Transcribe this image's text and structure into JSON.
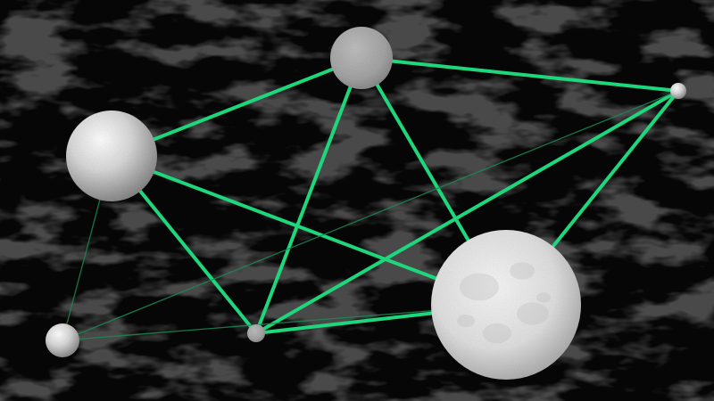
{
  "scene": {
    "background_color": "#060606",
    "texture_color": "#2a2a2a",
    "link_color": "#1ed67c",
    "faint_link_color": "#1a8a55",
    "sphere_light_color": "#ffffff",
    "sphere_mid_color": "#c9c9c9",
    "sphere_dark_color": "#6e6e6e"
  },
  "nodes": [
    {
      "id": "node-top"
    },
    {
      "id": "node-right-small"
    },
    {
      "id": "node-left-large"
    },
    {
      "id": "node-big"
    },
    {
      "id": "node-bottom-mid"
    },
    {
      "id": "node-bottom-left"
    }
  ],
  "links": [
    {
      "id": "link-left-large-to-top",
      "from": "node-left-large",
      "to": "node-top",
      "strength": "strong"
    },
    {
      "id": "link-top-to-right-small",
      "from": "node-top",
      "to": "node-right-small",
      "strength": "strong"
    },
    {
      "id": "link-top-to-big",
      "from": "node-top",
      "to": "node-big",
      "strength": "strong"
    },
    {
      "id": "link-top-to-bottom-mid",
      "from": "node-top",
      "to": "node-bottom-mid",
      "strength": "strong"
    },
    {
      "id": "link-left-large-to-big",
      "from": "node-left-large",
      "to": "node-big",
      "strength": "strong"
    },
    {
      "id": "link-left-large-to-bottom-mid",
      "from": "node-left-large",
      "to": "node-bottom-mid",
      "strength": "strong"
    },
    {
      "id": "link-right-small-to-big",
      "from": "node-right-small",
      "to": "node-big",
      "strength": "strong"
    },
    {
      "id": "link-right-small-to-bottom-mid",
      "from": "node-right-small",
      "to": "node-bottom-mid",
      "strength": "strong"
    },
    {
      "id": "link-bottom-mid-to-big",
      "from": "node-bottom-mid",
      "to": "node-big",
      "strength": "strong"
    },
    {
      "id": "link-bottom-left-to-right-small",
      "from": "node-bottom-left",
      "to": "node-right-small",
      "strength": "faint"
    },
    {
      "id": "link-bottom-left-to-left-large",
      "from": "node-bottom-left",
      "to": "node-left-large",
      "strength": "faint"
    },
    {
      "id": "link-bottom-left-to-big",
      "from": "node-bottom-left",
      "to": "node-big",
      "strength": "faint"
    }
  ]
}
